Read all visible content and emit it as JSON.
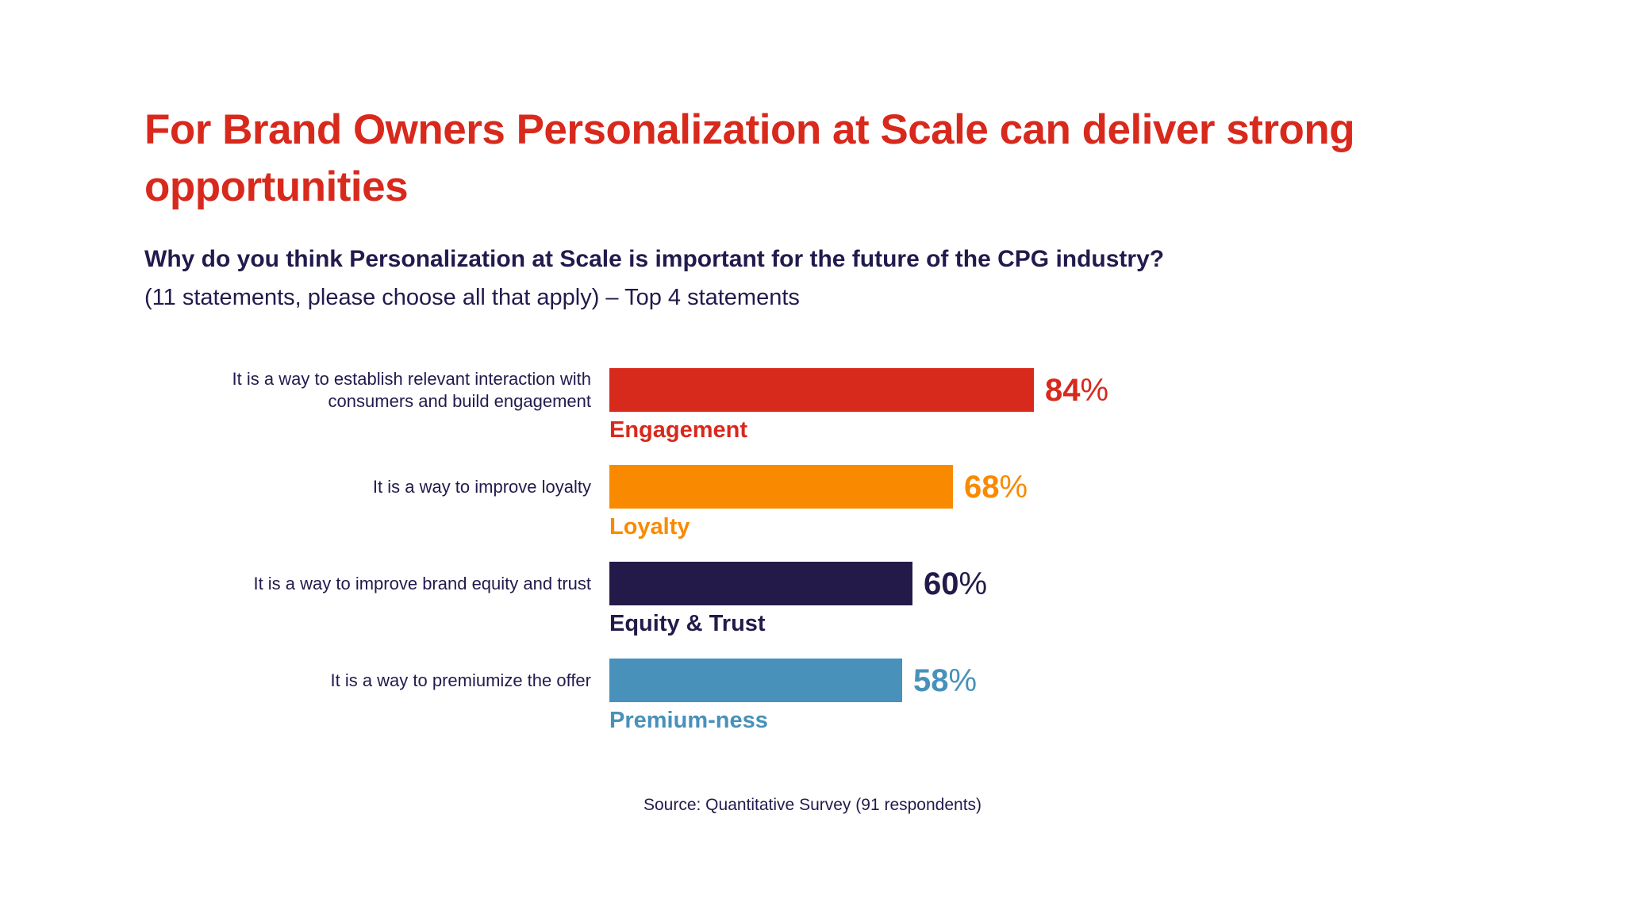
{
  "slide": {
    "title": "For Brand Owners Personalization at Scale can deliver strong opportunities",
    "question": "Why do you think Personalization at Scale is important for the future of the CPG industry?",
    "question_note": "(11 statements, please choose all that apply) – Top 4 statements",
    "source": "Source: Quantitative Survey (91 respondents)"
  },
  "colors": {
    "background": "#ffffff",
    "title_red": "#d8291d",
    "text_navy": "#211b4d",
    "bar_engagement": "#d8291d",
    "bar_loyalty": "#f98a00",
    "bar_equity_trust": "#241a4a",
    "bar_premiumness": "#4791bb"
  },
  "chart_data": {
    "type": "bar",
    "orientation": "horizontal",
    "title": "Why do you think Personalization at Scale is important for the future of the CPG industry?",
    "subtitle": "(11 statements, please choose all that apply) – Top 4 statements",
    "unit": "%",
    "axes_hidden": true,
    "grid": false,
    "value_labels_position": "end-of-bar",
    "xlim": [
      0,
      100
    ],
    "categories": [
      "Engagement",
      "Loyalty",
      "Equity & Trust",
      "Premium-ness"
    ],
    "values": [
      84,
      68,
      60,
      58
    ],
    "bars": [
      {
        "statement": "It is a way to establish relevant interaction with consumers and build engagement",
        "category": "Engagement",
        "value": 84,
        "color": "#d8291d"
      },
      {
        "statement": "It is a way to improve loyalty",
        "category": "Loyalty",
        "value": 68,
        "color": "#f98a00"
      },
      {
        "statement": "It is a way to improve brand equity and trust",
        "category": "Equity & Trust",
        "value": 60,
        "color": "#241a4a"
      },
      {
        "statement": "It is a way to premiumize the offer",
        "category": "Premium-ness",
        "value": 58,
        "color": "#4791bb"
      }
    ]
  }
}
